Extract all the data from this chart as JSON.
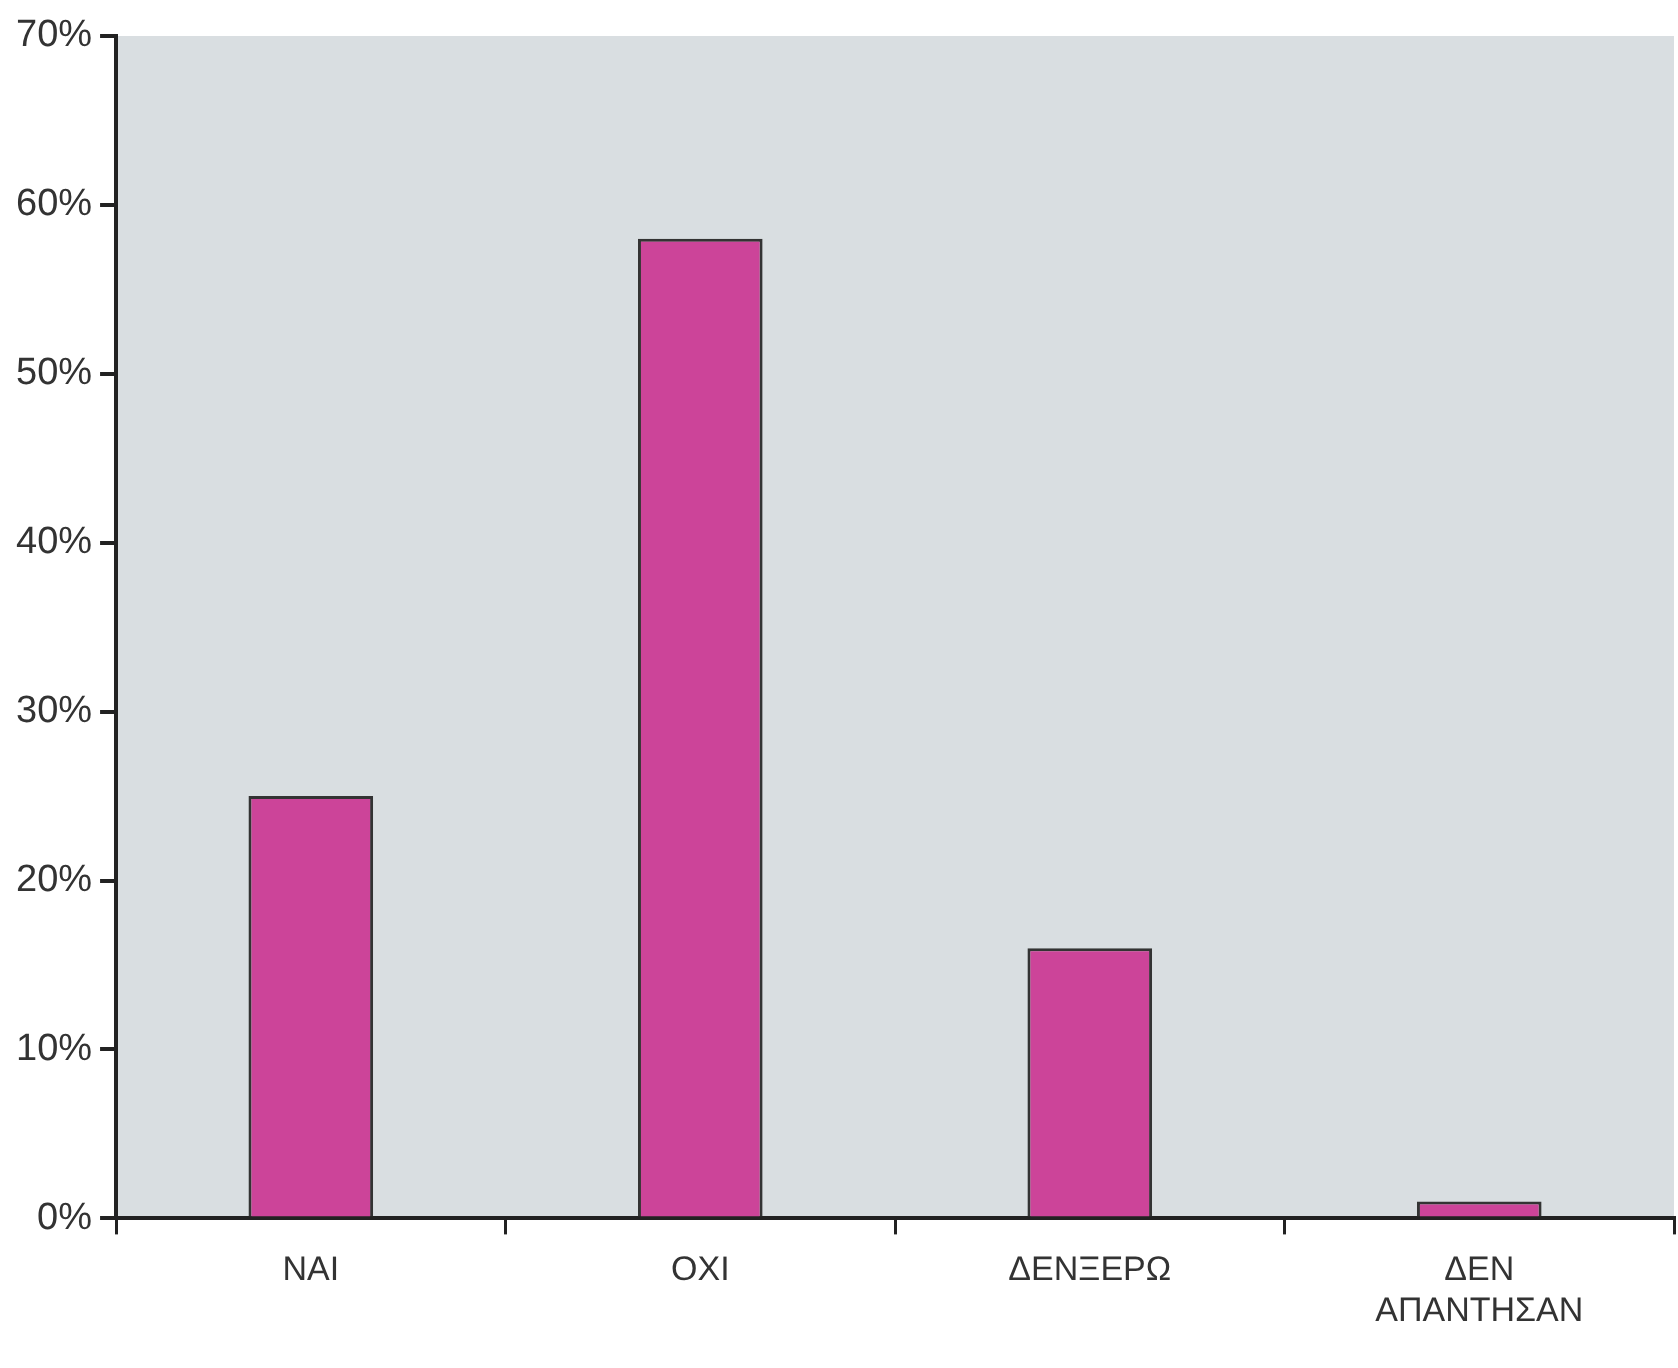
{
  "chart_data": {
    "type": "bar",
    "categories": [
      "NAI",
      "OXI",
      "ΔΕΝΞΕΡΩ",
      "ΔΕΝ ΑΠΑΝΤΗΣΑΝ"
    ],
    "values": [
      25,
      58,
      16,
      1
    ],
    "color": "#cc4499",
    "ylim": [
      0,
      70
    ],
    "yticks": [
      {
        "value": 0,
        "label": "0%"
      },
      {
        "value": 10,
        "label": "10%"
      },
      {
        "value": 20,
        "label": "20%"
      },
      {
        "value": 30,
        "label": "30%"
      },
      {
        "value": 40,
        "label": "40%"
      },
      {
        "value": 50,
        "label": "50%"
      },
      {
        "value": 60,
        "label": "60%"
      },
      {
        "value": 70,
        "label": "70%"
      }
    ],
    "grid": false,
    "legend": false
  }
}
